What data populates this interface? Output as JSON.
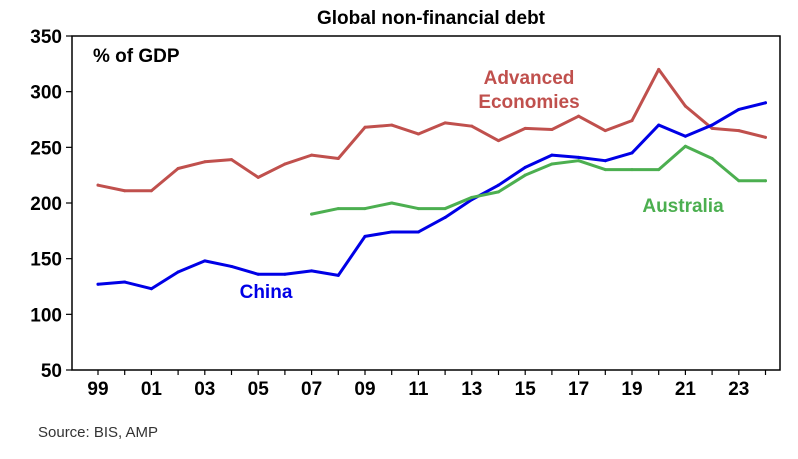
{
  "chart_data": {
    "type": "line",
    "title": "Global non-financial debt",
    "ylabel": "% of GDP",
    "xlabel": "",
    "xlim": [
      1999,
      2024.5
    ],
    "ylim": [
      50,
      350
    ],
    "yticks": [
      50,
      100,
      150,
      200,
      250,
      300,
      350
    ],
    "xticks": [
      {
        "x": 1999,
        "label": "99"
      },
      {
        "x": 2001,
        "label": "01"
      },
      {
        "x": 2003,
        "label": "03"
      },
      {
        "x": 2005,
        "label": "05"
      },
      {
        "x": 2007,
        "label": "07"
      },
      {
        "x": 2009,
        "label": "09"
      },
      {
        "x": 2011,
        "label": "11"
      },
      {
        "x": 2013,
        "label": "13"
      },
      {
        "x": 2015,
        "label": "15"
      },
      {
        "x": 2017,
        "label": "17"
      },
      {
        "x": 2019,
        "label": "19"
      },
      {
        "x": 2021,
        "label": "21"
      },
      {
        "x": 2023,
        "label": "23"
      }
    ],
    "grid": false,
    "series": [
      {
        "name": "Advanced Economies",
        "label_lines": [
          "Advanced",
          "Economies"
        ],
        "color": "#c0504d",
        "x": [
          1999,
          2000,
          2001,
          2002,
          2003,
          2004,
          2005,
          2006,
          2007,
          2008,
          2009,
          2010,
          2011,
          2012,
          2013,
          2014,
          2015,
          2016,
          2017,
          2018,
          2019,
          2020,
          2021,
          2022,
          2023,
          2024
        ],
        "values": [
          216,
          211,
          211,
          231,
          237,
          239,
          223,
          235,
          243,
          240,
          268,
          270,
          262,
          272,
          269,
          256,
          267,
          266,
          278,
          265,
          274,
          320,
          287,
          267,
          265,
          259
        ]
      },
      {
        "name": "China",
        "label_lines": [
          "China"
        ],
        "color": "#0000e6",
        "x": [
          1999,
          2000,
          2001,
          2002,
          2003,
          2004,
          2005,
          2006,
          2007,
          2008,
          2009,
          2010,
          2011,
          2012,
          2013,
          2014,
          2015,
          2016,
          2017,
          2018,
          2019,
          2020,
          2021,
          2022,
          2023,
          2024
        ],
        "values": [
          127,
          129,
          123,
          138,
          148,
          143,
          136,
          136,
          139,
          135,
          170,
          174,
          174,
          187,
          203,
          216,
          232,
          243,
          241,
          238,
          245,
          270,
          260,
          270,
          284,
          290
        ]
      },
      {
        "name": "Australia",
        "label_lines": [
          "Australia"
        ],
        "color": "#4caf50",
        "x": [
          2007,
          2008,
          2009,
          2010,
          2011,
          2012,
          2013,
          2014,
          2015,
          2016,
          2017,
          2018,
          2019,
          2020,
          2021,
          2022,
          2023,
          2024
        ],
        "values": [
          190,
          195,
          195,
          200,
          195,
          195,
          205,
          210,
          225,
          235,
          238,
          230,
          230,
          230,
          251,
          240,
          220,
          220
        ]
      }
    ]
  },
  "source": "Source: BIS, AMP"
}
